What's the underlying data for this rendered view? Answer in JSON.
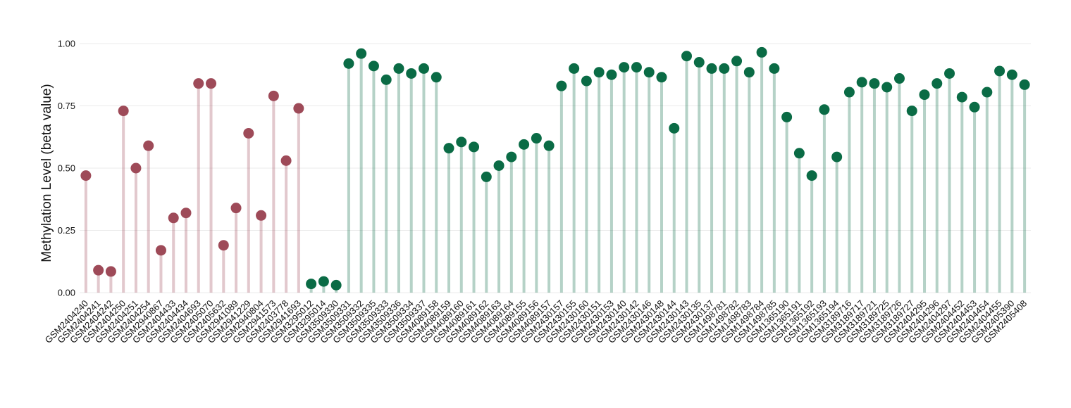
{
  "chart_data": {
    "type": "lollipop",
    "ylabel": "Methylation Level (beta value)",
    "categories": [
      "GSM2404240",
      "GSM2404241",
      "GSM2404242",
      "GSM2404250",
      "GSM2404251",
      "GSM2404254",
      "GSM2940867",
      "GSM2404433",
      "GSM2404434",
      "GSM2404693",
      "GSM2405070",
      "GSM2405632",
      "GSM2941089",
      "GSM2941229",
      "GSM2940804",
      "GSM2941573",
      "GSM2403778",
      "GSM2941693",
      "GSM3295012",
      "GSM3295014",
      "GSM3509330",
      "GSM3509331",
      "GSM3509332",
      "GSM3509335",
      "GSM3509333",
      "GSM3509336",
      "GSM3509334",
      "GSM3509337",
      "GSM4089158",
      "GSM4089159",
      "GSM4089160",
      "GSM4089161",
      "GSM4089162",
      "GSM4089163",
      "GSM4089164",
      "GSM4089155",
      "GSM4089156",
      "GSM4089157",
      "GSM2430157",
      "GSM2430155",
      "GSM2430160",
      "GSM2430151",
      "GSM2430153",
      "GSM2430140",
      "GSM2430142",
      "GSM2430146",
      "GSM2430148",
      "GSM2430144",
      "GSM2430143",
      "GSM2430135",
      "GSM2430137",
      "GSM1498781",
      "GSM1498782",
      "GSM1498783",
      "GSM1498784",
      "GSM1498785",
      "GSM1365190",
      "GSM1365191",
      "GSM1365192",
      "GSM1365193",
      "GSM1365194",
      "GSM3189716",
      "GSM3189717",
      "GSM3189721",
      "GSM3189725",
      "GSM3189726",
      "GSM3189727",
      "GSM2404295",
      "GSM2404296",
      "GSM2404297",
      "GSM2404452",
      "GSM2404453",
      "GSM2404454",
      "GSM2404455",
      "GSM2405390",
      "GSM2405408"
    ],
    "values": [
      0.47,
      0.09,
      0.085,
      0.73,
      0.5,
      0.59,
      0.17,
      0.3,
      0.32,
      0.84,
      0.84,
      0.19,
      0.34,
      0.64,
      0.31,
      0.79,
      0.53,
      0.74,
      0.035,
      0.045,
      0.03,
      0.92,
      0.96,
      0.91,
      0.855,
      0.9,
      0.88,
      0.9,
      0.865,
      0.58,
      0.605,
      0.585,
      0.465,
      0.51,
      0.545,
      0.595,
      0.62,
      0.59,
      0.83,
      0.9,
      0.85,
      0.885,
      0.875,
      0.905,
      0.905,
      0.885,
      0.865,
      0.66,
      0.95,
      0.925,
      0.9,
      0.9,
      0.93,
      0.885,
      0.965,
      0.9,
      0.705,
      0.56,
      0.47,
      0.735,
      0.545,
      0.805,
      0.845,
      0.84,
      0.825,
      0.86,
      0.73,
      0.795,
      0.84,
      0.88,
      0.785,
      0.745,
      0.805,
      0.89,
      0.875,
      0.835
    ],
    "colors": [
      "#9e4a58",
      "#9e4a58",
      "#9e4a58",
      "#9e4a58",
      "#9e4a58",
      "#9e4a58",
      "#9e4a58",
      "#9e4a58",
      "#9e4a58",
      "#9e4a58",
      "#9e4a58",
      "#9e4a58",
      "#9e4a58",
      "#9e4a58",
      "#9e4a58",
      "#9e4a58",
      "#9e4a58",
      "#9e4a58",
      "#0a6b45",
      "#0a6b45",
      "#0a6b45",
      "#0a6b45",
      "#0a6b45",
      "#0a6b45",
      "#0a6b45",
      "#0a6b45",
      "#0a6b45",
      "#0a6b45",
      "#0a6b45",
      "#0a6b45",
      "#0a6b45",
      "#0a6b45",
      "#0a6b45",
      "#0a6b45",
      "#0a6b45",
      "#0a6b45",
      "#0a6b45",
      "#0a6b45",
      "#0a6b45",
      "#0a6b45",
      "#0a6b45",
      "#0a6b45",
      "#0a6b45",
      "#0a6b45",
      "#0a6b45",
      "#0a6b45",
      "#0a6b45",
      "#0a6b45",
      "#0a6b45",
      "#0a6b45",
      "#0a6b45",
      "#0a6b45",
      "#0a6b45",
      "#0a6b45",
      "#0a6b45",
      "#0a6b45",
      "#0a6b45",
      "#0a6b45",
      "#0a6b45",
      "#0a6b45",
      "#0a6b45",
      "#0a6b45",
      "#0a6b45",
      "#0a6b45",
      "#0a6b45",
      "#0a6b45",
      "#0a6b45",
      "#0a6b45",
      "#0a6b45",
      "#0a6b45",
      "#0a6b45",
      "#0a6b45",
      "#0a6b45",
      "#0a6b45",
      "#0a6b45",
      "#0a6b45"
    ],
    "ylim": [
      0,
      1
    ],
    "yticks": [
      {
        "value": 0,
        "label": "0.00"
      },
      {
        "value": 0.25,
        "label": "0.25"
      },
      {
        "value": 0.5,
        "label": "0.50"
      },
      {
        "value": 0.75,
        "label": "0.75"
      },
      {
        "value": 1,
        "label": "1.00"
      }
    ],
    "grid": true
  }
}
